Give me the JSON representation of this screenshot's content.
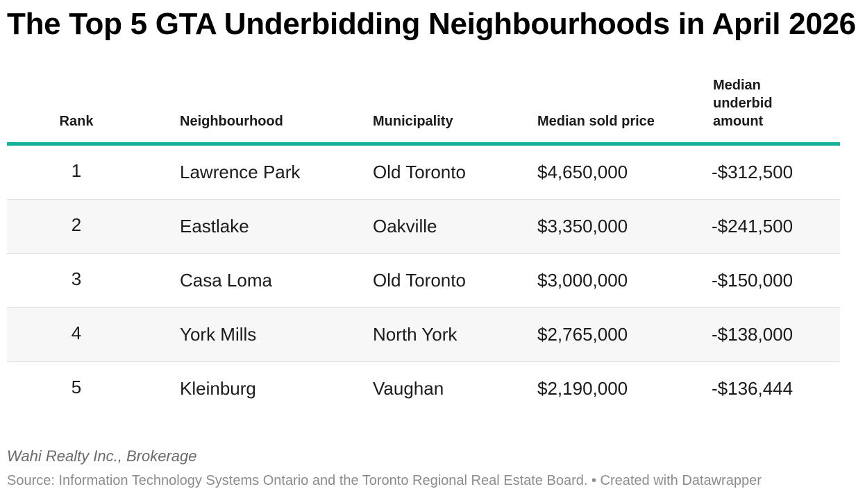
{
  "chart_data": {
    "type": "table",
    "title": "The Top 5 GTA Underbidding Neighbourhoods in April 2026",
    "columns": [
      "Rank",
      "Neighbourhood",
      "Municipality",
      "Median sold price",
      "Median underbid amount"
    ],
    "rows": [
      {
        "rank": "1",
        "neighbourhood": "Lawrence Park",
        "municipality": "Old Toronto",
        "median_sold_price": "$4,650,000",
        "median_underbid_amount": "-$312,500"
      },
      {
        "rank": "2",
        "neighbourhood": "Eastlake",
        "municipality": "Oakville",
        "median_sold_price": "$3,350,000",
        "median_underbid_amount": "-$241,500"
      },
      {
        "rank": "3",
        "neighbourhood": "Casa Loma",
        "municipality": "Old Toronto",
        "median_sold_price": "$3,000,000",
        "median_underbid_amount": "-$150,000"
      },
      {
        "rank": "4",
        "neighbourhood": "York Mills",
        "municipality": "North York",
        "median_sold_price": "$2,765,000",
        "median_underbid_amount": "-$138,000"
      },
      {
        "rank": "5",
        "neighbourhood": "Kleinburg",
        "municipality": "Vaughan",
        "median_sold_price": "$2,190,000",
        "median_underbid_amount": "-$136,444"
      }
    ],
    "notes": "Wahi Realty Inc., Brokerage",
    "source": "Source: Information Technology Systems Ontario and the Toronto Regional Real Estate Board. • Created with Datawrapper"
  },
  "colors": {
    "header_rule": "#16b09a",
    "alt_row": "#f7f7f7"
  }
}
